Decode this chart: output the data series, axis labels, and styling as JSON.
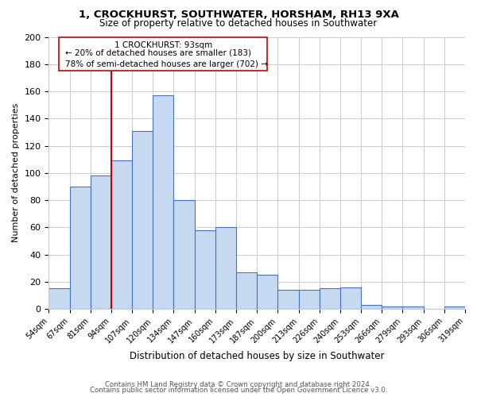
{
  "title1": "1, CROCKHURST, SOUTHWATER, HORSHAM, RH13 9XA",
  "title2": "Size of property relative to detached houses in Southwater",
  "xlabel": "Distribution of detached houses by size in Southwater",
  "ylabel": "Number of detached properties",
  "bar_labels": [
    "54sqm",
    "67sqm",
    "81sqm",
    "94sqm",
    "107sqm",
    "120sqm",
    "134sqm",
    "147sqm",
    "160sqm",
    "173sqm",
    "187sqm",
    "200sqm",
    "213sqm",
    "226sqm",
    "240sqm",
    "253sqm",
    "266sqm",
    "279sqm",
    "293sqm",
    "306sqm",
    "319sqm"
  ],
  "bar_heights": [
    15,
    90,
    98,
    109,
    131,
    157,
    80,
    58,
    60,
    27,
    25,
    14,
    14,
    15,
    16,
    3,
    2,
    2,
    0,
    2
  ],
  "bar_color": "#c6d9f0",
  "bar_edge_color": "#4472c4",
  "vline_x": 3,
  "marker_label": "1 CROCKHURST: 93sqm",
  "annotation_line1": "← 20% of detached houses are smaller (183)",
  "annotation_line2": "78% of semi-detached houses are larger (702) →",
  "vline_color": "#cc0000",
  "box_edge_color": "#cc0000",
  "ylim": [
    0,
    200
  ],
  "yticks": [
    0,
    20,
    40,
    60,
    80,
    100,
    120,
    140,
    160,
    180,
    200
  ],
  "footer1": "Contains HM Land Registry data © Crown copyright and database right 2024.",
  "footer2": "Contains public sector information licensed under the Open Government Licence v3.0.",
  "bg_color": "#ffffff",
  "grid_color": "#cccccc"
}
